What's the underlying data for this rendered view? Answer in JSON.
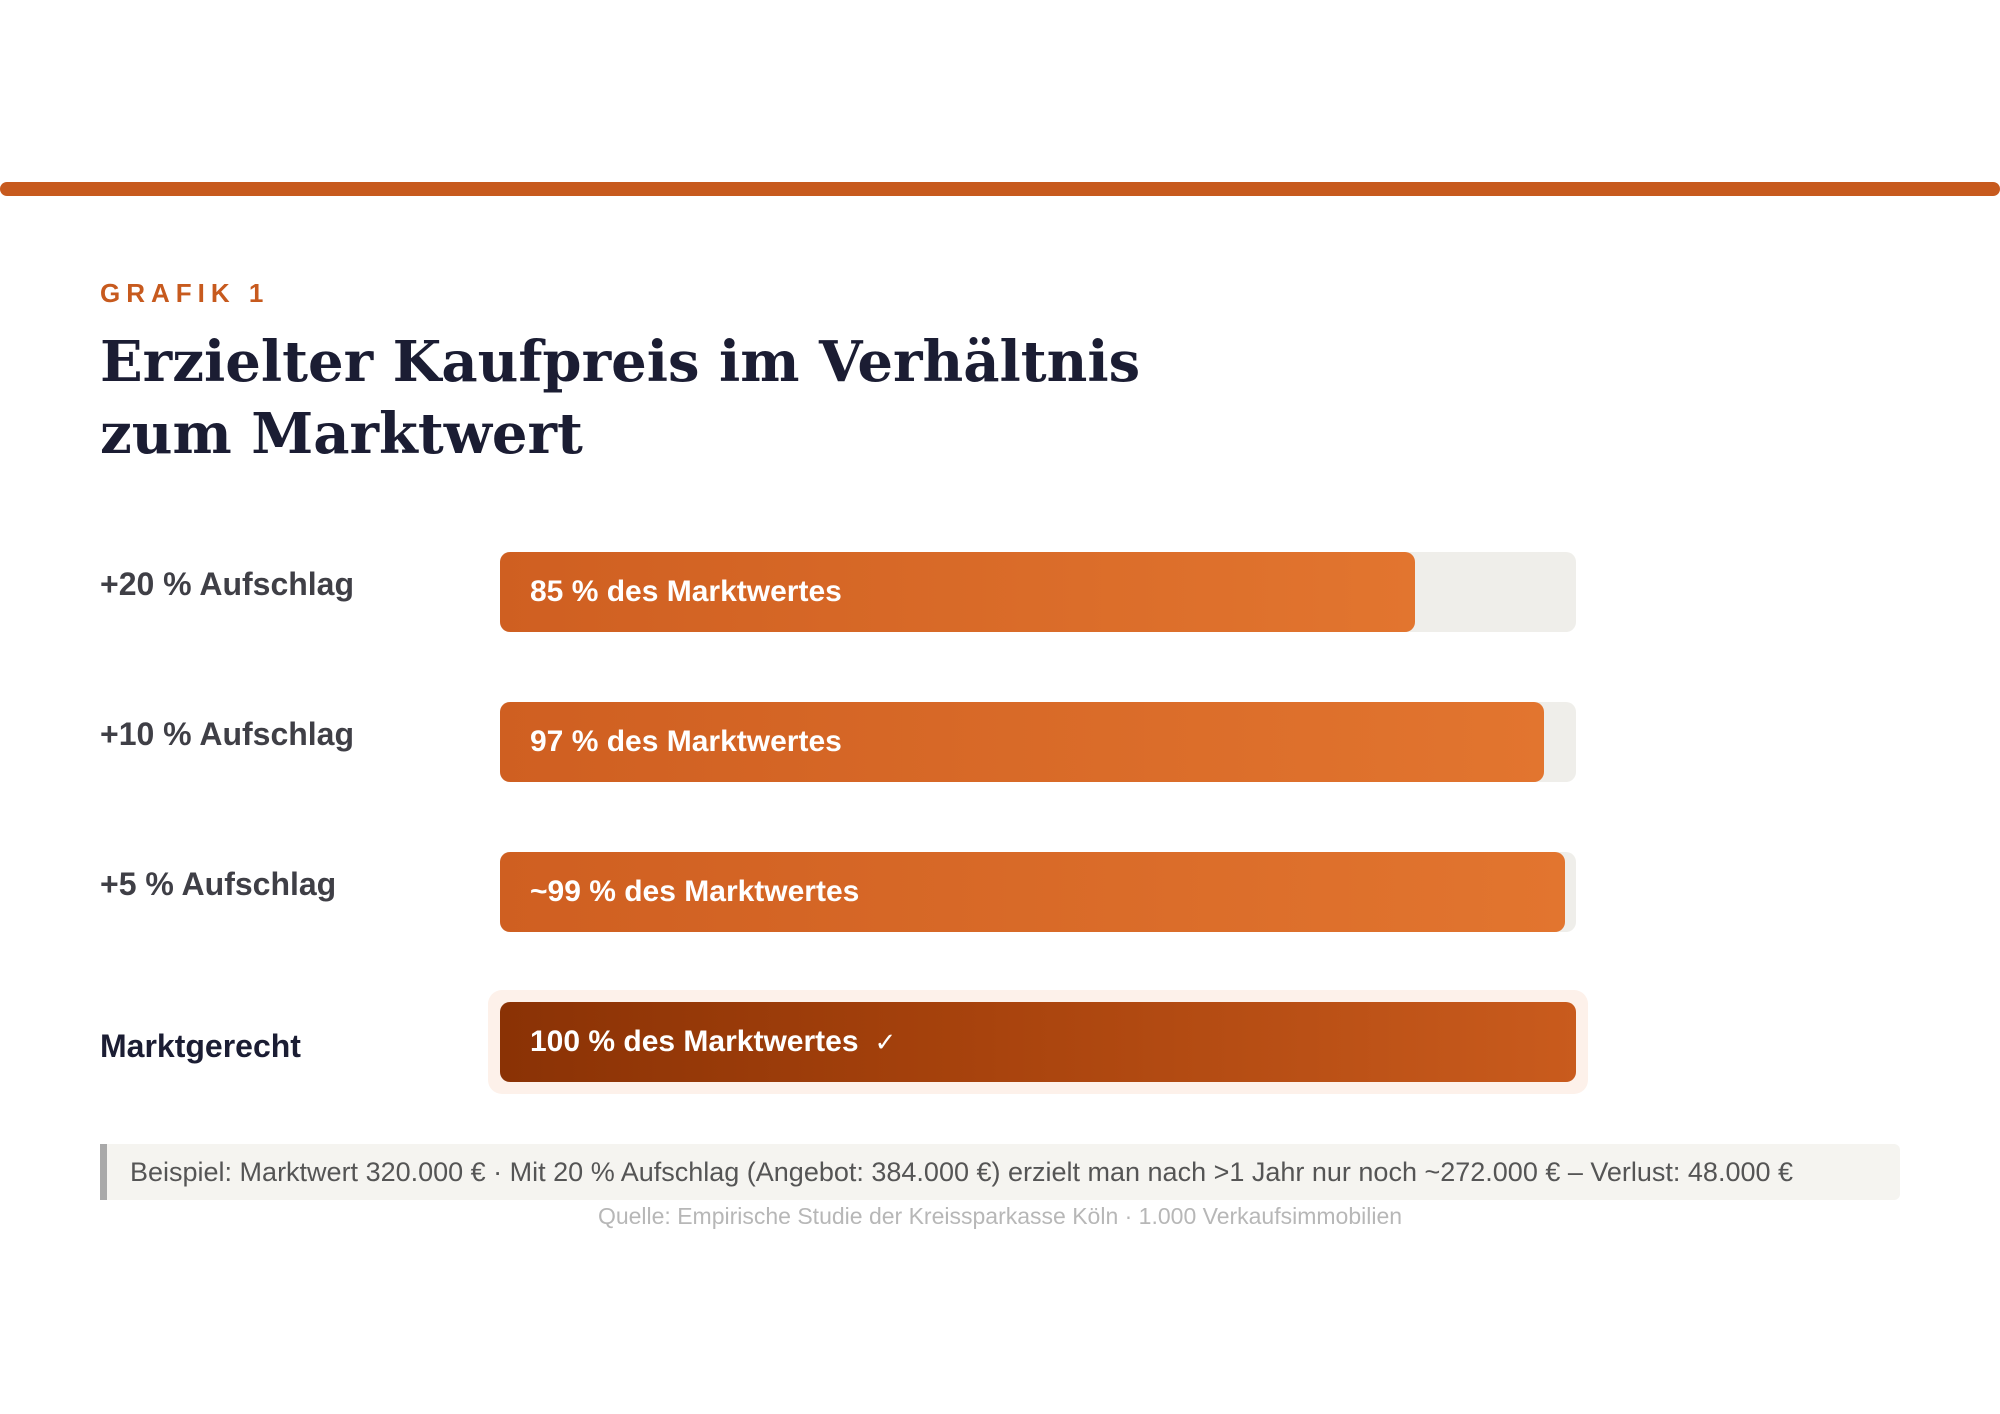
{
  "header": {
    "kicker": "GRAFIK 1",
    "title": "Erzielter Kaufpreis im Verhältnis zum Marktwert"
  },
  "colors": {
    "accent": "#c75a1e",
    "bar": "#d96a2a",
    "bar_highlight": "#9a3a09",
    "track": "#efeeea",
    "title": "#1b1d33"
  },
  "chart_data": {
    "type": "bar",
    "orientation": "horizontal",
    "title": "Erzielter Kaufpreis im Verhältnis zum Marktwert",
    "xlabel": "",
    "ylabel": "",
    "xlim": [
      0,
      100
    ],
    "unit": "% des Marktwertes",
    "categories": [
      "+20 % Aufschlag",
      "+10 % Aufschlag",
      "+5 % Aufschlag",
      "Marktgerecht"
    ],
    "values": [
      85,
      97,
      99,
      100
    ],
    "data_labels": [
      "85 % des Marktwertes",
      "97 % des Marktwertes",
      "~99 % des Marktwertes",
      "100 % des Marktwertes"
    ],
    "highlighted": [
      false,
      false,
      false,
      true
    ],
    "highlight_mark": "✓"
  },
  "note": {
    "text": "Beispiel: Marktwert 320.000 € · Mit 20 % Aufschlag (Angebot: 384.000 €) erzielt man nach >1 Jahr nur noch ~272.000 € – Verlust: 48.000 €"
  },
  "source": {
    "text": "Quelle: Empirische Studie der Kreissparkasse Köln · 1.000 Verkaufsimmobilien"
  }
}
